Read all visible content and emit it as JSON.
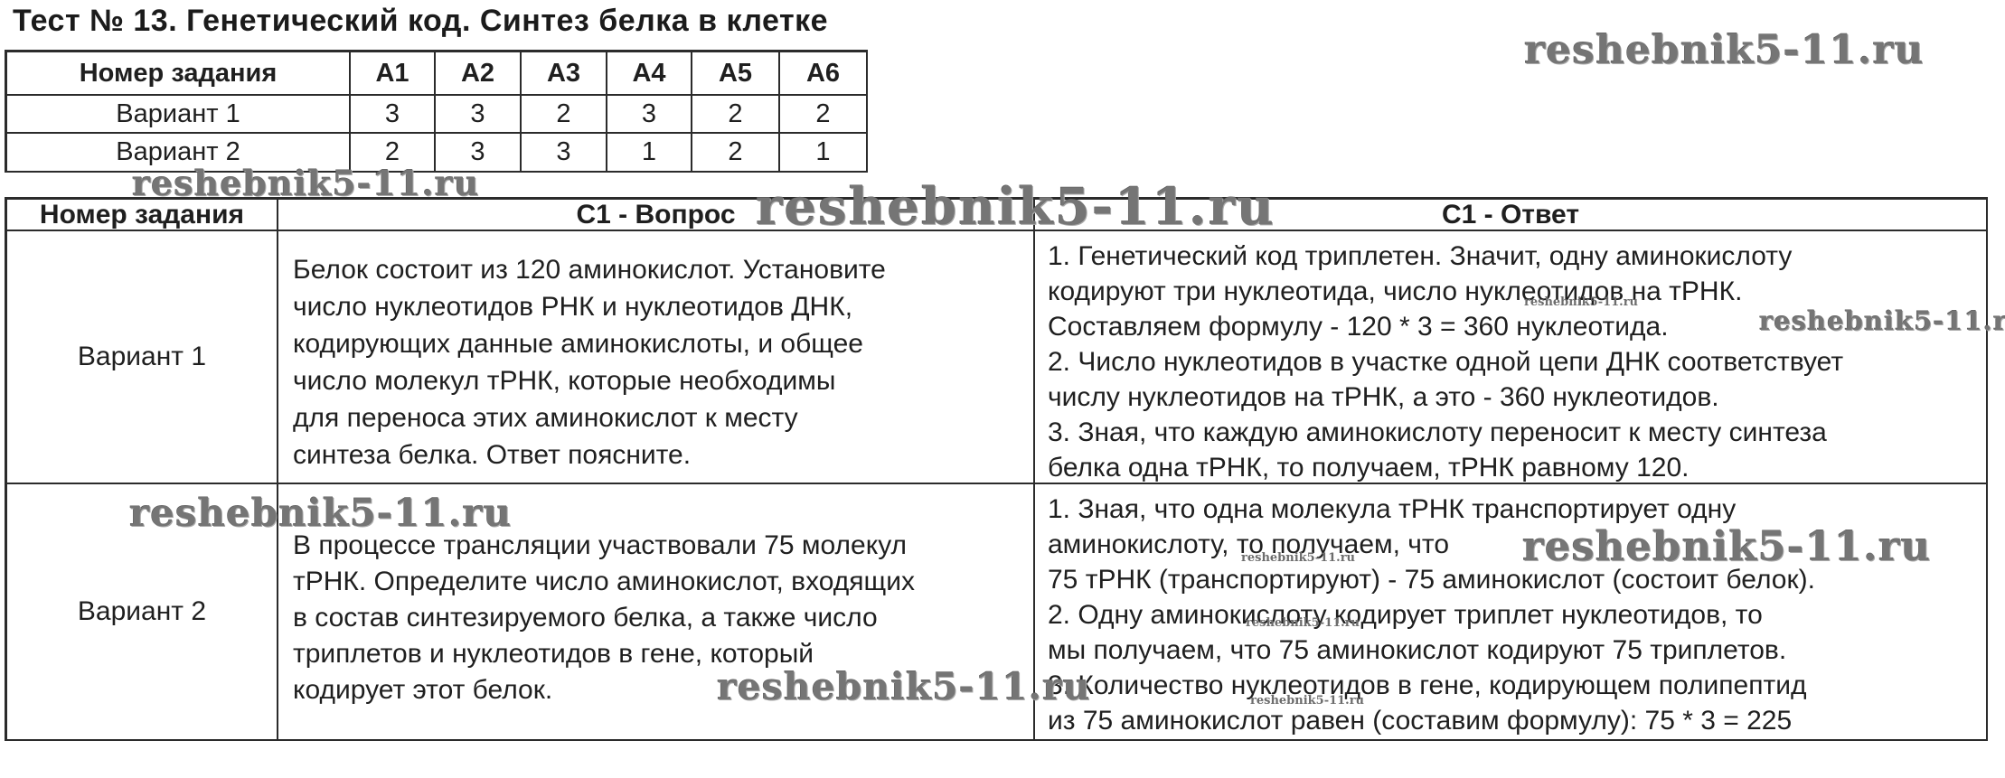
{
  "title": "Тест № 13. Генетический код. Синтез белка в клетке",
  "watermark_text": "reshebnik5-11.ru",
  "colors": {
    "text": "#1f1f1f",
    "border": "#2b2b2b",
    "watermark": "#757575"
  },
  "answer_key_table": {
    "headers": [
      "Номер задания",
      "А1",
      "А2",
      "А3",
      "А4",
      "А5",
      "А6"
    ],
    "rows": [
      {
        "label": "Вариант 1",
        "values": [
          "3",
          "3",
          "2",
          "3",
          "2",
          "2"
        ]
      },
      {
        "label": "Вариант 2",
        "values": [
          "2",
          "3",
          "3",
          "1",
          "2",
          "1"
        ]
      }
    ]
  },
  "c1_table": {
    "headers": [
      "Номер задания",
      "С1 - Вопрос",
      "С1 - Ответ"
    ],
    "rows": [
      {
        "label": "Вариант 1",
        "question": "Белок состоит из 120 аминокислот. Установите\nчисло нуклеотидов РНК и нуклеотидов ДНК,\nкодирующих данные аминокислоты, и общее\nчисло молекул тРНК, которые необходимы\nдля переноса этих аминокислот к месту\nсинтеза белка. Ответ поясните.",
        "answer": "1. Генетический код триплетен. Значит, одну аминокислоту\nкодируют три нуклеотида, число нуклеотидов на тРНК.\nСоставляем формулу - 120 * 3 = 360 нуклеотида.\n2. Число нуклеотидов в участке одной цепи ДНК соответствует\nчислу нуклеотидов на тРНК, а это - 360 нуклеотидов.\n3. Зная, что каждую аминокислоту переносит к месту синтеза\nбелка одна тРНК, то получаем, тРНК равному 120."
      },
      {
        "label": "Вариант 2",
        "question": "В процессе трансляции участвовали 75 молекул\nтРНК. Определите число аминокислот, входящих\nв состав синтезируемого белка, а также число\nтриплетов и нуклеотидов в гене, который\nкодирует этот белок.",
        "answer": "1. Зная, что одна молекула тРНК транспортирует одну\nаминокислоту, то получаем, что\n75 тРНК (транспортируют) - 75 аминокислот (состоит белок).\n2. Одну аминокислоту кодирует триплет нуклеотидов, то\nмы получаем, что 75 аминокислот кодируют 75 триплетов.\n3. Количество нуклеотидов в гене, кодирующем полипептид\nиз 75 аминокислот равен (составим формулу): 75 * 3 = 225"
      }
    ]
  }
}
